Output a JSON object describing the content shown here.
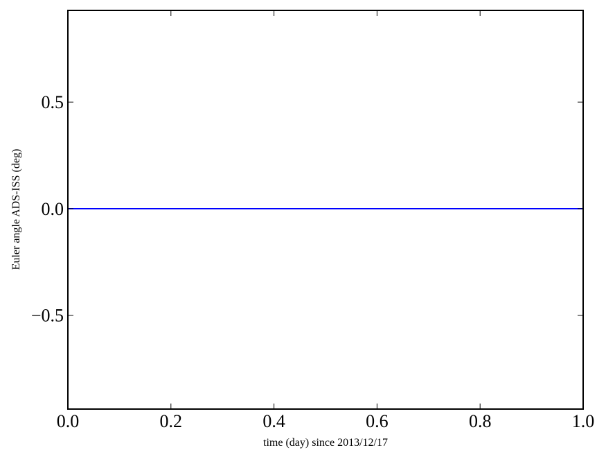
{
  "chart_data": {
    "type": "line",
    "title": "",
    "xlabel": "time (day) since 2013/12/17",
    "ylabel": "Euler angle ADS-ISS (deg)",
    "xlim": [
      0.0,
      1.0
    ],
    "ylim": [
      -0.94,
      0.93
    ],
    "xticks": [
      0.0,
      0.2,
      0.4,
      0.6,
      0.8,
      1.0
    ],
    "xtick_labels": [
      "0.0",
      "0.2",
      "0.4",
      "0.6",
      "0.8",
      "1.0"
    ],
    "yticks": [
      0.5,
      0.0,
      -0.5
    ],
    "ytick_labels": [
      "0.5",
      "0.0",
      "−0.5"
    ],
    "grid": false,
    "series": [
      {
        "color": "#0000ff",
        "x": [
          0.0,
          1.0
        ],
        "y": [
          0.0,
          0.0
        ]
      }
    ]
  }
}
